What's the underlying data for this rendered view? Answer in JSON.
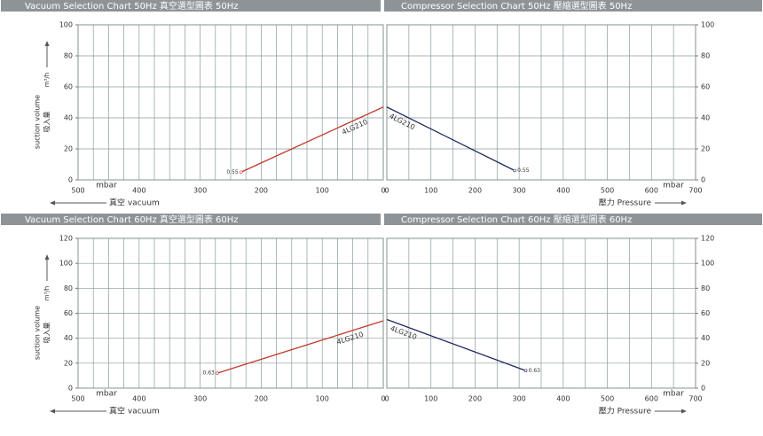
{
  "chart_data": [
    {
      "type": "line",
      "title": "Vacuum Selection Chart 50Hz   真空選型圖表 50Hz",
      "x_unit": "mbar",
      "xlabel": "真空 vacuum",
      "ylabel": "suction volume",
      "ylabel_cn": "吸入量",
      "y_unit": "m³/h",
      "xlim": [
        500,
        0
      ],
      "xticks": [
        500,
        400,
        300,
        200,
        100,
        0
      ],
      "ylim": [
        0,
        100
      ],
      "yticks": [
        0,
        20,
        40,
        60,
        80,
        100
      ],
      "y_axis_side": "left",
      "grid": true,
      "series": [
        {
          "name": "4LG210",
          "color": "#c0392b",
          "x": [
            233,
            0
          ],
          "values": [
            5,
            47
          ],
          "end_label": "0.55"
        }
      ]
    },
    {
      "type": "line",
      "title": "Compressor Selection Chart 50Hz   壓縮選型圖表 50Hz",
      "x_unit": "mbar",
      "xlabel": "壓力 Pressure",
      "xlim": [
        0,
        700
      ],
      "xticks": [
        0,
        100,
        200,
        300,
        400,
        500,
        600,
        700
      ],
      "ylim": [
        0,
        100
      ],
      "yticks": [
        0,
        20,
        40,
        60,
        80,
        100
      ],
      "y_axis_side": "right",
      "grid": true,
      "series": [
        {
          "name": "4LG210",
          "color": "#1f2a5c",
          "x": [
            0,
            290
          ],
          "values": [
            47,
            6
          ],
          "end_label": "0.55"
        }
      ]
    },
    {
      "type": "line",
      "title": "Vacuum Selection Chart 60Hz   真空選型圖表 60Hz",
      "x_unit": "mbar",
      "xlabel": "真空 vacuum",
      "ylabel": "suction volume",
      "ylabel_cn": "吸入量",
      "y_unit": "m³/h",
      "xlim": [
        500,
        0
      ],
      "xticks": [
        500,
        400,
        300,
        200,
        100,
        0
      ],
      "ylim": [
        0,
        120
      ],
      "yticks": [
        0,
        20,
        40,
        60,
        80,
        100,
        120
      ],
      "y_axis_side": "left",
      "grid": true,
      "series": [
        {
          "name": "4LG210",
          "color": "#c0392b",
          "x": [
            272,
            0
          ],
          "values": [
            12,
            54
          ],
          "end_label": "0.63"
        }
      ]
    },
    {
      "type": "line",
      "title": "Compressor Selection Chart 60Hz   壓縮選型圖表 60Hz",
      "x_unit": "mbar",
      "xlabel": "壓力 Pressure",
      "xlim": [
        0,
        700
      ],
      "xticks": [
        0,
        100,
        200,
        300,
        400,
        500,
        600,
        700
      ],
      "ylim": [
        0,
        120
      ],
      "yticks": [
        0,
        20,
        40,
        60,
        80,
        100,
        120
      ],
      "y_axis_side": "right",
      "grid": true,
      "series": [
        {
          "name": "4LG210",
          "color": "#1f2a5c",
          "x": [
            0,
            315
          ],
          "values": [
            55,
            14
          ],
          "end_label": "0.63"
        }
      ]
    }
  ]
}
